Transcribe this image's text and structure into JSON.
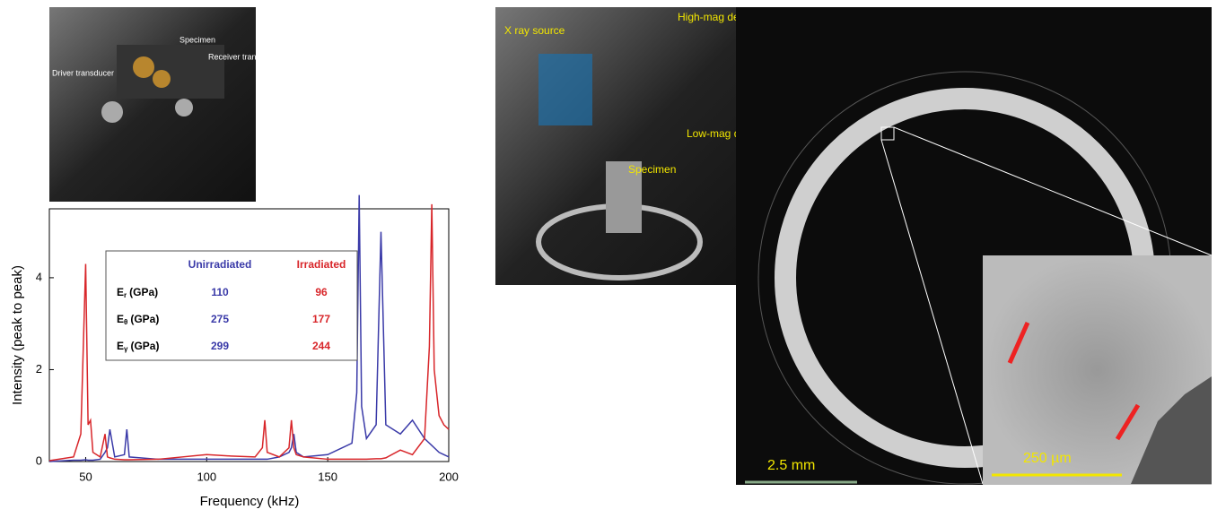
{
  "chart_data": {
    "type": "line",
    "x_label": "Frequency (kHz)",
    "y_label": "Intensity (peak to peak)",
    "x": [
      35,
      45,
      48,
      50,
      51,
      52,
      53,
      56,
      58,
      59,
      60,
      62,
      66,
      67,
      68,
      80,
      100,
      110,
      120,
      123,
      124,
      125,
      130,
      134,
      135,
      136,
      137,
      140,
      150,
      160,
      162,
      163,
      164,
      166,
      170,
      172,
      174,
      180,
      185,
      190,
      192,
      193,
      194,
      196,
      198,
      200
    ],
    "series": [
      {
        "name": "Unirradiated",
        "color": "#3a3aa8",
        "values": [
          0,
          0.03,
          0.03,
          0.04,
          0.03,
          0.03,
          0.03,
          0.05,
          0.2,
          0.3,
          0.7,
          0.1,
          0.15,
          0.7,
          0.1,
          0.05,
          0.05,
          0.05,
          0.05,
          0.05,
          0.05,
          0.05,
          0.1,
          0.2,
          0.3,
          0.6,
          0.2,
          0.1,
          0.15,
          0.4,
          1.5,
          5.8,
          1.2,
          0.5,
          0.8,
          5.0,
          0.8,
          0.6,
          0.9,
          0.5,
          0.4,
          0.35,
          0.3,
          0.2,
          0.15,
          0.1
        ]
      },
      {
        "name": "Irradiated",
        "color": "#d8262a",
        "values": [
          0.02,
          0.1,
          0.6,
          4.3,
          0.8,
          0.9,
          0.2,
          0.1,
          0.6,
          0.1,
          0.08,
          0.05,
          0.04,
          0.04,
          0.04,
          0.05,
          0.15,
          0.12,
          0.1,
          0.3,
          0.9,
          0.2,
          0.1,
          0.3,
          0.9,
          0.3,
          0.15,
          0.1,
          0.05,
          0.05,
          0.05,
          0.05,
          0.05,
          0.05,
          0.06,
          0.06,
          0.08,
          0.25,
          0.15,
          0.5,
          2.5,
          5.6,
          2.0,
          1.0,
          0.8,
          0.7
        ]
      }
    ],
    "xlim": [
      35,
      200
    ],
    "ylim": [
      0,
      5.5
    ],
    "xticks": [
      50,
      100,
      150,
      200
    ],
    "yticks": [
      0,
      2,
      4
    ]
  },
  "inset_table": {
    "rows": [
      {
        "symbol": "E",
        "sub": "r",
        "unit": "(GPa)",
        "unirradiated": "110",
        "irradiated": "96"
      },
      {
        "symbol": "E",
        "sub": "θ",
        "unit": "(GPa)",
        "unirradiated": "275",
        "irradiated": "177"
      },
      {
        "symbol": "E",
        "sub": "γ",
        "unit": "(GPa)",
        "unirradiated": "299",
        "irradiated": "244"
      }
    ]
  },
  "photos": {
    "setup": {
      "specimen": "Specimen",
      "receiver": "Receiver transducers",
      "driver": "Driver transducer"
    },
    "ct_setup": {
      "source": "X ray source",
      "high_mag": "High-mag detector",
      "low_mag": "Low-mag detector",
      "specimen": "Specimen"
    },
    "ct_scan": {
      "scale": "2.5 mm",
      "inset_scale": "250 µm"
    }
  }
}
